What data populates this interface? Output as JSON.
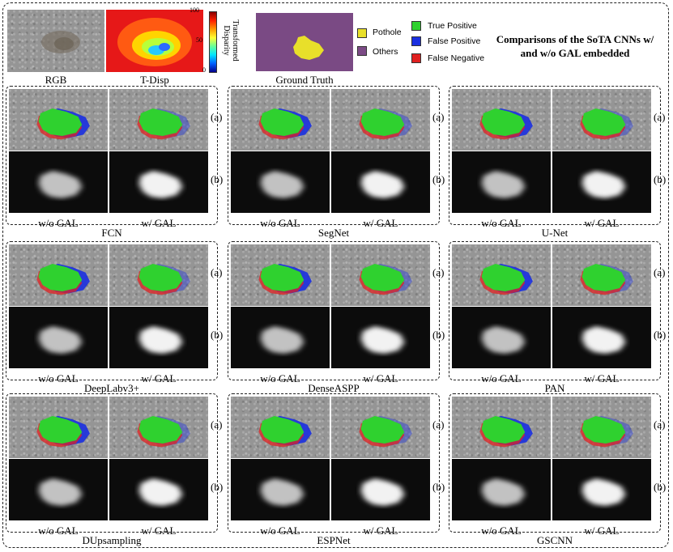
{
  "header": {
    "images": [
      {
        "label": "RGB"
      },
      {
        "label": "T-Disp"
      },
      {
        "label": "Ground Truth"
      }
    ],
    "colorbar": {
      "max_label": "100",
      "mid_label": "50",
      "min_label": "0",
      "title": "Transformed Disparity"
    },
    "legend_gt": [
      {
        "label": "Pothole",
        "color": "#e8df2a"
      },
      {
        "label": "Others",
        "color": "#7c4b86"
      }
    ],
    "legend_pred": [
      {
        "label": "True Positive",
        "color": "#2fd12f"
      },
      {
        "label": "False Positive",
        "color": "#1a2fe0"
      },
      {
        "label": "False Negative",
        "color": "#e02020"
      }
    ],
    "title": "Comparisons of the SoTA CNNs w/ and w/o GAL embedded"
  },
  "row_tags": {
    "a": "(a)",
    "b": "(b)"
  },
  "column_labels": {
    "without": "w/o GAL",
    "with": "w/ GAL"
  },
  "panels": [
    {
      "name": "FCN"
    },
    {
      "name": "SegNet"
    },
    {
      "name": "U-Net"
    },
    {
      "name": "DeepLabv3+"
    },
    {
      "name": "DenseASPP"
    },
    {
      "name": "PAN"
    },
    {
      "name": "DUpsampling"
    },
    {
      "name": "ESPNet"
    },
    {
      "name": "GSCNN"
    }
  ]
}
